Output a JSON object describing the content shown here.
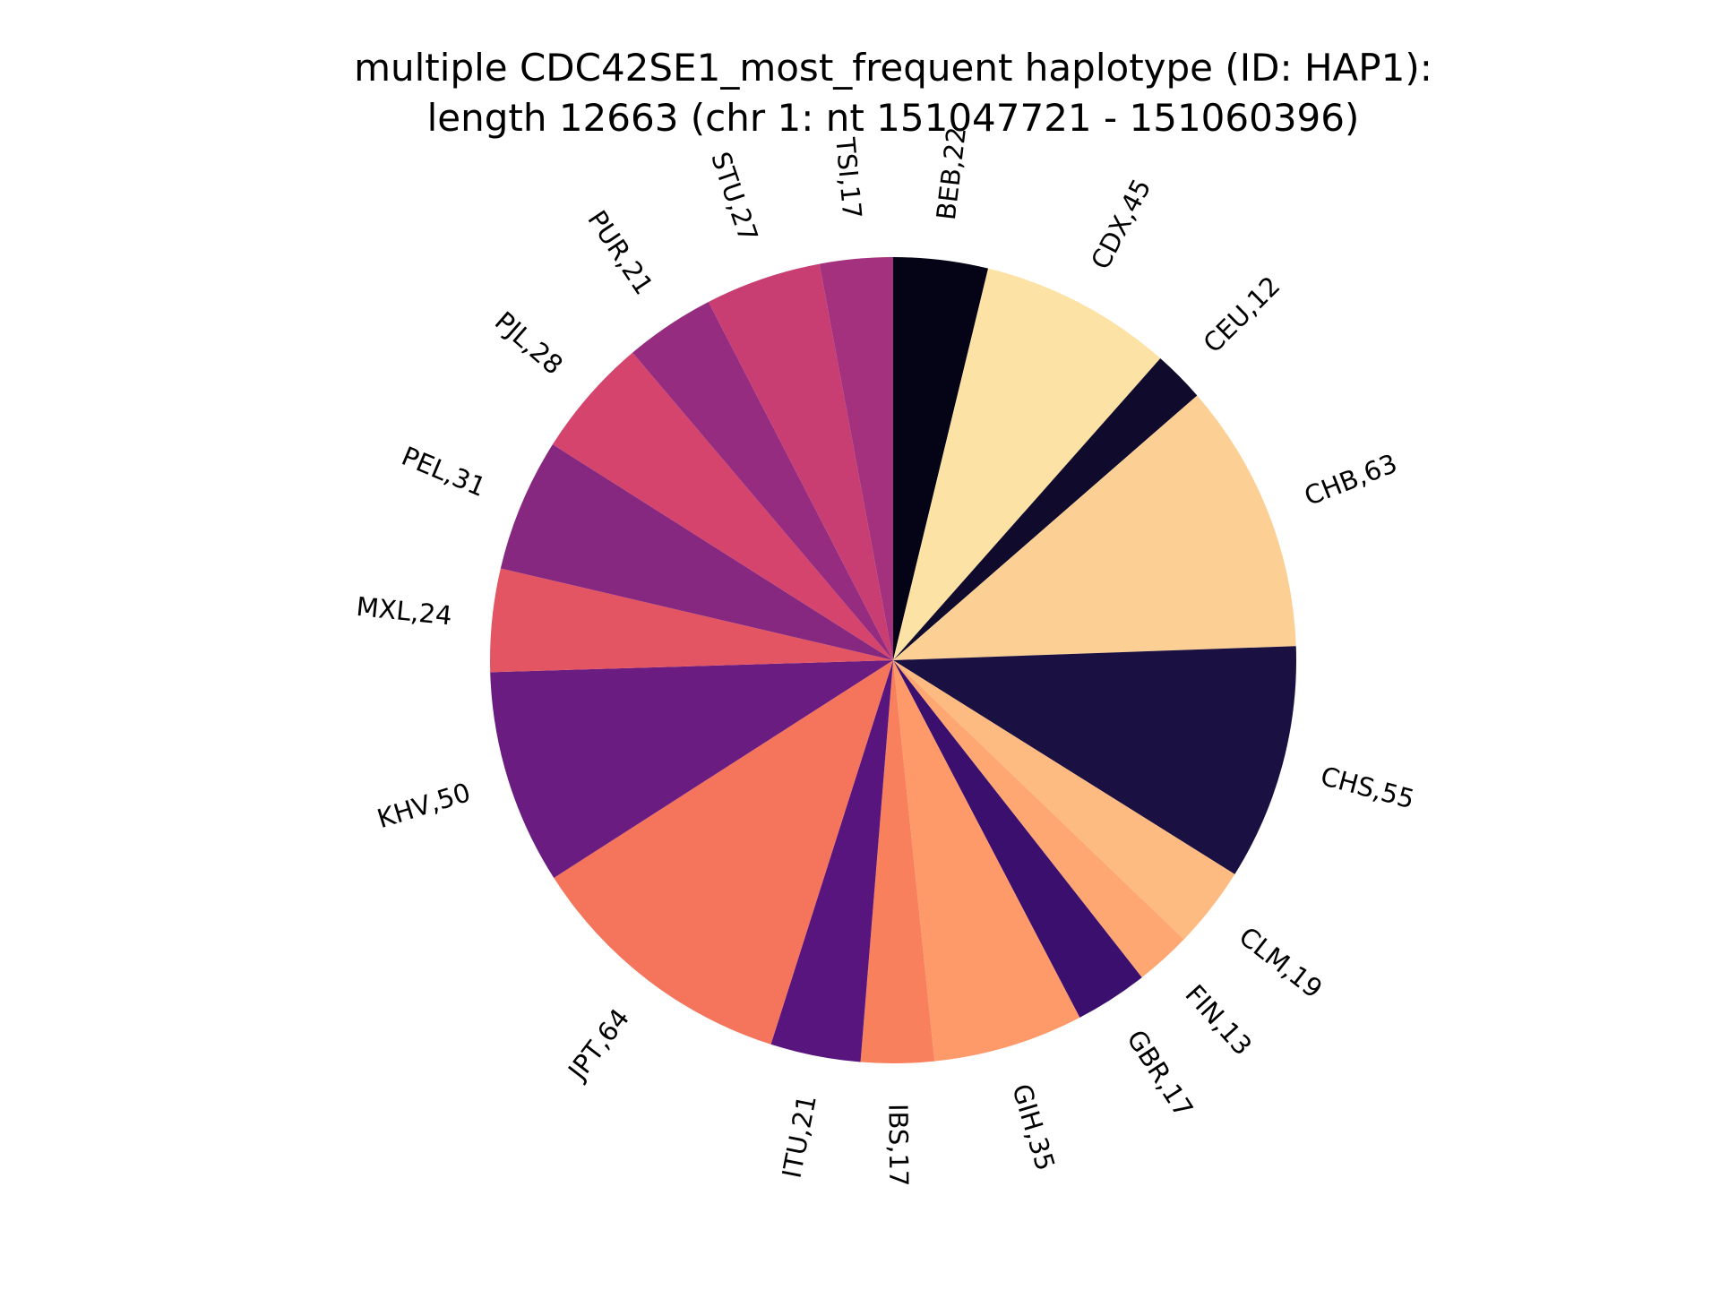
{
  "chart_data": {
    "type": "pie",
    "title_lines": [
      "multiple CDC42SE1_most_frequent haplotype (ID: HAP1):",
      "length 12663 (chr 1: nt 151047721 - 151060396)"
    ],
    "start_angle_deg": 90,
    "direction": "clockwise",
    "slices": [
      {
        "label": "BEB,22",
        "value": 22,
        "color": "#050417"
      },
      {
        "label": "CDX,45",
        "value": 45,
        "color": "#fde2a6"
      },
      {
        "label": "CEU,12",
        "value": 12,
        "color": "#100b2d"
      },
      {
        "label": "CHB,63",
        "value": 63,
        "color": "#fcd095"
      },
      {
        "label": "CHS,55",
        "value": 55,
        "color": "#1b1042"
      },
      {
        "label": "CLM,19",
        "value": 19,
        "color": "#febb81"
      },
      {
        "label": "FIN,13",
        "value": 13,
        "color": "#fea772"
      },
      {
        "label": "GBR,17",
        "value": 17,
        "color": "#3a0f6e"
      },
      {
        "label": "GIH,35",
        "value": 35,
        "color": "#fe9a69"
      },
      {
        "label": "IBS,17",
        "value": 17,
        "color": "#f8805c"
      },
      {
        "label": "ITU,21",
        "value": 21,
        "color": "#59157e"
      },
      {
        "label": "JPT,64",
        "value": 64,
        "color": "#f5745c"
      },
      {
        "label": "KHV,50",
        "value": 50,
        "color": "#6a1c81"
      },
      {
        "label": "MXL,24",
        "value": 24,
        "color": "#e45563"
      },
      {
        "label": "PEL,31",
        "value": 31,
        "color": "#862780"
      },
      {
        "label": "PJL,28",
        "value": 28,
        "color": "#d4446d"
      },
      {
        "label": "PUR,21",
        "value": 21,
        "color": "#952c80"
      },
      {
        "label": "STU,27",
        "value": 27,
        "color": "#c83e73"
      },
      {
        "label": "TSI,17",
        "value": 17,
        "color": "#a3317e"
      }
    ]
  }
}
